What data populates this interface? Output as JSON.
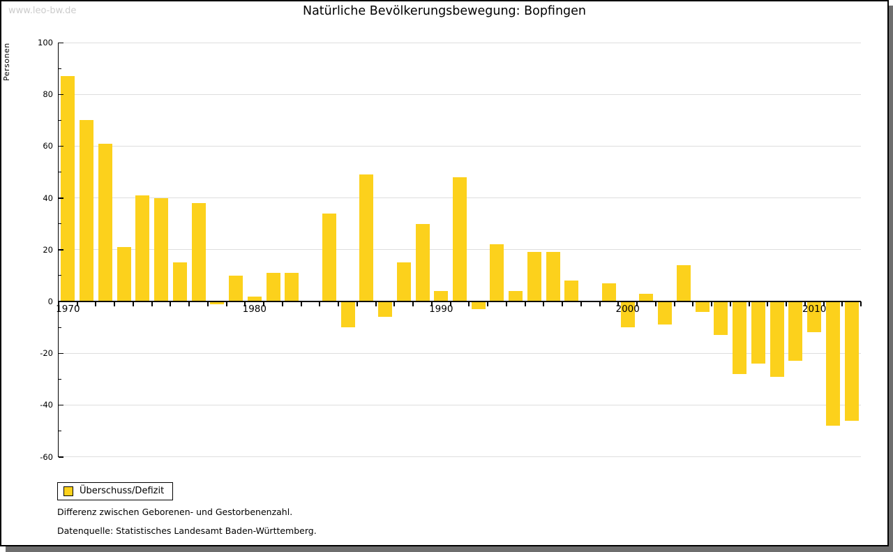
{
  "watermark": "www.leo-bw.de",
  "chart_data": {
    "type": "bar",
    "title": "Natürliche Bevölkerungsbewegung: Bopfingen",
    "xlabel": "",
    "ylabel": "Personen",
    "categories": [
      1970,
      1971,
      1972,
      1973,
      1974,
      1975,
      1976,
      1977,
      1978,
      1979,
      1980,
      1981,
      1982,
      1983,
      1984,
      1985,
      1986,
      1987,
      1988,
      1989,
      1990,
      1991,
      1992,
      1993,
      1994,
      1995,
      1996,
      1997,
      1998,
      1999,
      2000,
      2001,
      2002,
      2003,
      2004,
      2005,
      2006,
      2007,
      2008,
      2009,
      2010,
      2011,
      2012
    ],
    "values": [
      87,
      70,
      61,
      21,
      41,
      40,
      15,
      38,
      -1,
      10,
      2,
      11,
      11,
      0,
      34,
      -10,
      49,
      -6,
      15,
      30,
      4,
      48,
      -3,
      22,
      4,
      19,
      19,
      8,
      0,
      7,
      -10,
      3,
      -9,
      14,
      -4,
      -13,
      -28,
      -24,
      -29,
      -23,
      -12,
      -48,
      -46
    ],
    "series_name": "Überschuss/Defizit",
    "ylim": [
      -60,
      100
    ],
    "y_major_step": 20,
    "y_minor_step": 10,
    "x_major_ticks": [
      1970,
      1980,
      1990,
      2000,
      2010
    ],
    "grid": true,
    "legend_position": "bottom-left",
    "bar_color": "#FCD11C",
    "gridline_color": "#dedede"
  },
  "legend": {
    "label": "Überschuss/Defizit"
  },
  "footnotes": [
    "Differenz zwischen Geborenen- und Gestorbenenzahl.",
    "Datenquelle: Statistisches Landesamt Baden-Württemberg."
  ]
}
